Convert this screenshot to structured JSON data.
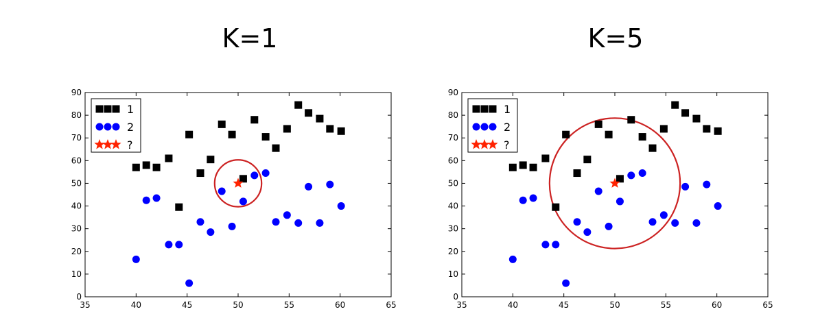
{
  "chart_data": [
    {
      "type": "scatter",
      "title": "K=1",
      "xlim": [
        35,
        65
      ],
      "ylim": [
        0,
        90
      ],
      "xticks": [
        "35",
        "40",
        "45",
        "50",
        "55",
        "60",
        "65"
      ],
      "yticks": [
        "0",
        "10",
        "20",
        "30",
        "40",
        "50",
        "60",
        "70",
        "80",
        "90"
      ],
      "legend_position": "top-left",
      "grid": false,
      "series": [
        {
          "name": "1",
          "marker": "square",
          "color": "#000000",
          "x": [
            40,
            41,
            42,
            43.2,
            44.2,
            45.2,
            46.3,
            47.3,
            48.4,
            49.4,
            50.5,
            51.6,
            52.7,
            53.7,
            54.8,
            55.9,
            56.9,
            58,
            59,
            60.1
          ],
          "y": [
            57,
            58,
            57,
            61,
            39.5,
            71.5,
            54.5,
            60.5,
            76,
            71.5,
            52,
            78,
            70.5,
            65.5,
            74,
            84.5,
            81,
            78.5,
            74,
            73
          ]
        },
        {
          "name": "2",
          "marker": "circle",
          "color": "#0000ff",
          "x": [
            40,
            41,
            42,
            43.2,
            44.2,
            45.2,
            46.3,
            47.3,
            48.4,
            49.4,
            50.5,
            51.6,
            52.7,
            53.7,
            54.8,
            55.9,
            56.9,
            58,
            59,
            60.1
          ],
          "y": [
            16.5,
            42.5,
            43.5,
            23,
            23,
            6,
            33,
            28.5,
            46.5,
            31,
            42,
            53.5,
            54.5,
            33,
            36,
            32.5,
            48.5,
            32.5,
            49.5,
            40
          ]
        },
        {
          "name": "?",
          "marker": "star",
          "color": "#ff2200",
          "x": [
            50
          ],
          "y": [
            50
          ]
        }
      ],
      "annotations": [
        {
          "type": "circle",
          "center": [
            50,
            50
          ],
          "radius_x": 2.3,
          "color": "#cc2222"
        }
      ]
    },
    {
      "type": "scatter",
      "title": "K=5",
      "xlim": [
        35,
        65
      ],
      "ylim": [
        0,
        90
      ],
      "xticks": [
        "35",
        "40",
        "45",
        "50",
        "55",
        "60",
        "65"
      ],
      "yticks": [
        "0",
        "10",
        "20",
        "30",
        "40",
        "50",
        "60",
        "70",
        "80",
        "90"
      ],
      "legend_position": "top-left",
      "grid": false,
      "series": [
        {
          "name": "1",
          "marker": "square",
          "color": "#000000",
          "x": [
            40,
            41,
            42,
            43.2,
            44.2,
            45.2,
            46.3,
            47.3,
            48.4,
            49.4,
            50.5,
            51.6,
            52.7,
            53.7,
            54.8,
            55.9,
            56.9,
            58,
            59,
            60.1
          ],
          "y": [
            57,
            58,
            57,
            61,
            39.5,
            71.5,
            54.5,
            60.5,
            76,
            71.5,
            52,
            78,
            70.5,
            65.5,
            74,
            84.5,
            81,
            78.5,
            74,
            73
          ]
        },
        {
          "name": "2",
          "marker": "circle",
          "color": "#0000ff",
          "x": [
            40,
            41,
            42,
            43.2,
            44.2,
            45.2,
            46.3,
            47.3,
            48.4,
            49.4,
            50.5,
            51.6,
            52.7,
            53.7,
            54.8,
            55.9,
            56.9,
            58,
            59,
            60.1
          ],
          "y": [
            16.5,
            42.5,
            43.5,
            23,
            23,
            6,
            33,
            28.5,
            46.5,
            31,
            42,
            53.5,
            54.5,
            33,
            36,
            32.5,
            48.5,
            32.5,
            49.5,
            40
          ]
        },
        {
          "name": "?",
          "marker": "star",
          "color": "#ff2200",
          "x": [
            50
          ],
          "y": [
            50
          ]
        }
      ],
      "annotations": [
        {
          "type": "circle",
          "center": [
            50,
            50
          ],
          "radius_x": 6.4,
          "color": "#cc2222"
        }
      ]
    }
  ]
}
